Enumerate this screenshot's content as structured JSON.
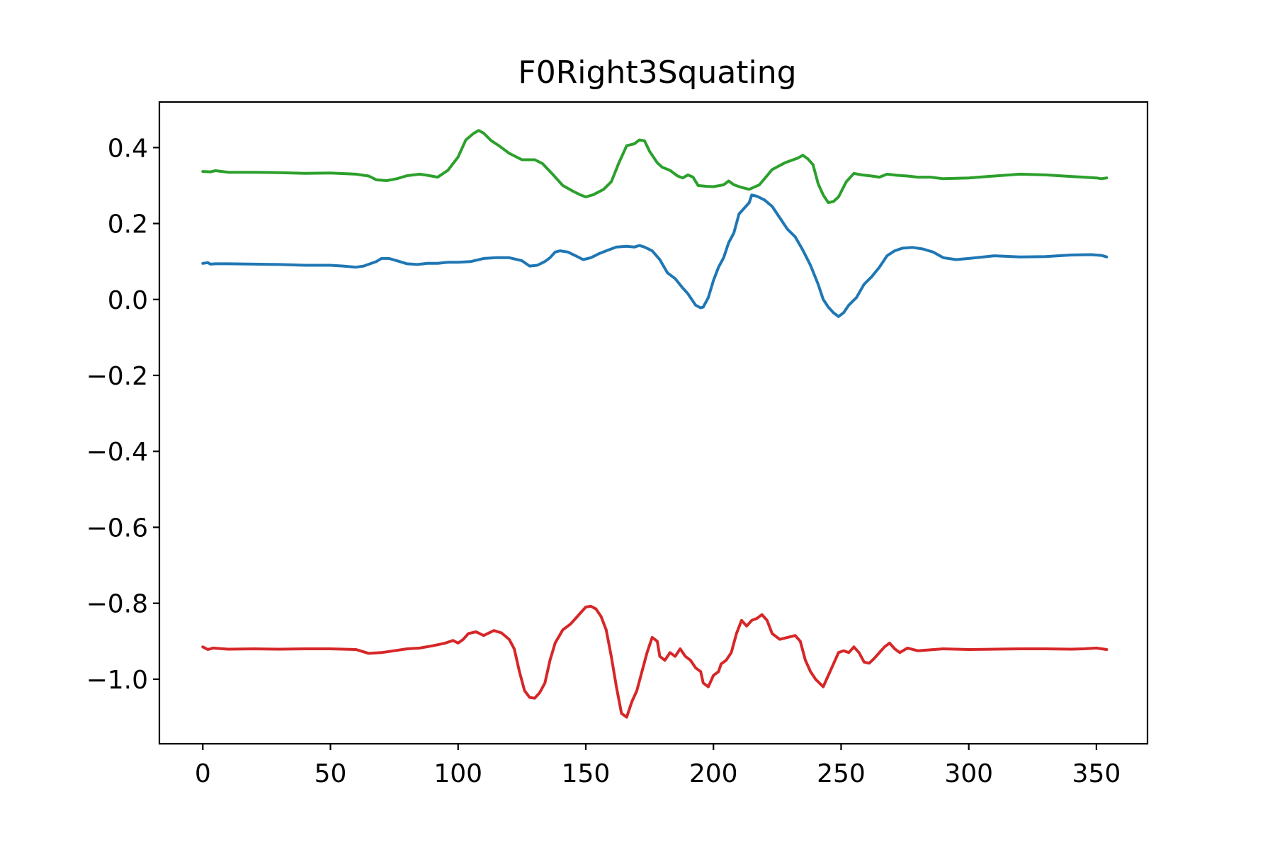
{
  "chart_data": {
    "type": "line",
    "title": "F0Right3Squating",
    "xlabel": "",
    "ylabel": "",
    "xlim": [
      -17,
      370
    ],
    "ylim": [
      -1.17,
      0.52
    ],
    "grid": false,
    "legend": "none",
    "x_ticks": [
      0,
      50,
      100,
      150,
      200,
      250,
      300,
      350
    ],
    "x_tick_labels": [
      "0",
      "50",
      "100",
      "150",
      "200",
      "250",
      "300",
      "350"
    ],
    "y_ticks": [
      0.4,
      0.2,
      0.0,
      -0.2,
      -0.4,
      -0.6,
      -0.8,
      -1.0
    ],
    "y_tick_labels": [
      "0.4",
      "0.2",
      "0.0",
      "−0.2",
      "−0.4",
      "−0.6",
      "−0.8",
      "−1.0"
    ],
    "series": [
      {
        "color": "#2ca02c",
        "points": [
          [
            0,
            0.337
          ],
          [
            3,
            0.336
          ],
          [
            5,
            0.339
          ],
          [
            10,
            0.335
          ],
          [
            20,
            0.335
          ],
          [
            30,
            0.334
          ],
          [
            40,
            0.332
          ],
          [
            50,
            0.333
          ],
          [
            60,
            0.33
          ],
          [
            65,
            0.325
          ],
          [
            68,
            0.315
          ],
          [
            72,
            0.313
          ],
          [
            76,
            0.318
          ],
          [
            80,
            0.326
          ],
          [
            85,
            0.33
          ],
          [
            88,
            0.327
          ],
          [
            92,
            0.322
          ],
          [
            96,
            0.34
          ],
          [
            100,
            0.375
          ],
          [
            103,
            0.42
          ],
          [
            106,
            0.437
          ],
          [
            108,
            0.445
          ],
          [
            110,
            0.438
          ],
          [
            113,
            0.418
          ],
          [
            116,
            0.405
          ],
          [
            120,
            0.385
          ],
          [
            125,
            0.368
          ],
          [
            130,
            0.368
          ],
          [
            133,
            0.358
          ],
          [
            137,
            0.33
          ],
          [
            141,
            0.3
          ],
          [
            145,
            0.285
          ],
          [
            148,
            0.275
          ],
          [
            150,
            0.27
          ],
          [
            153,
            0.276
          ],
          [
            157,
            0.29
          ],
          [
            160,
            0.31
          ],
          [
            163,
            0.36
          ],
          [
            166,
            0.405
          ],
          [
            169,
            0.41
          ],
          [
            171,
            0.42
          ],
          [
            173,
            0.418
          ],
          [
            175,
            0.39
          ],
          [
            178,
            0.36
          ],
          [
            180,
            0.348
          ],
          [
            183,
            0.34
          ],
          [
            186,
            0.325
          ],
          [
            188,
            0.32
          ],
          [
            190,
            0.328
          ],
          [
            192,
            0.322
          ],
          [
            194,
            0.3
          ],
          [
            197,
            0.298
          ],
          [
            200,
            0.297
          ],
          [
            204,
            0.302
          ],
          [
            206,
            0.312
          ],
          [
            208,
            0.302
          ],
          [
            211,
            0.295
          ],
          [
            214,
            0.29
          ],
          [
            216,
            0.296
          ],
          [
            218,
            0.302
          ],
          [
            220,
            0.318
          ],
          [
            223,
            0.342
          ],
          [
            228,
            0.36
          ],
          [
            233,
            0.372
          ],
          [
            235,
            0.38
          ],
          [
            237,
            0.37
          ],
          [
            239,
            0.355
          ],
          [
            241,
            0.305
          ],
          [
            243,
            0.275
          ],
          [
            245,
            0.255
          ],
          [
            247,
            0.258
          ],
          [
            249,
            0.27
          ],
          [
            252,
            0.31
          ],
          [
            255,
            0.332
          ],
          [
            258,
            0.328
          ],
          [
            262,
            0.325
          ],
          [
            265,
            0.322
          ],
          [
            268,
            0.33
          ],
          [
            272,
            0.327
          ],
          [
            276,
            0.325
          ],
          [
            280,
            0.322
          ],
          [
            285,
            0.322
          ],
          [
            290,
            0.318
          ],
          [
            300,
            0.32
          ],
          [
            310,
            0.325
          ],
          [
            320,
            0.33
          ],
          [
            330,
            0.328
          ],
          [
            340,
            0.324
          ],
          [
            345,
            0.322
          ],
          [
            350,
            0.32
          ],
          [
            352,
            0.318
          ],
          [
            354,
            0.32
          ]
        ]
      },
      {
        "color": "#1f77b4",
        "points": [
          [
            0,
            0.095
          ],
          [
            2,
            0.097
          ],
          [
            3,
            0.093
          ],
          [
            5,
            0.094
          ],
          [
            10,
            0.094
          ],
          [
            20,
            0.093
          ],
          [
            30,
            0.092
          ],
          [
            40,
            0.09
          ],
          [
            50,
            0.09
          ],
          [
            55,
            0.088
          ],
          [
            60,
            0.085
          ],
          [
            63,
            0.088
          ],
          [
            66,
            0.095
          ],
          [
            68,
            0.1
          ],
          [
            70,
            0.108
          ],
          [
            73,
            0.108
          ],
          [
            76,
            0.102
          ],
          [
            80,
            0.094
          ],
          [
            84,
            0.092
          ],
          [
            88,
            0.095
          ],
          [
            92,
            0.095
          ],
          [
            96,
            0.098
          ],
          [
            100,
            0.098
          ],
          [
            105,
            0.1
          ],
          [
            110,
            0.108
          ],
          [
            115,
            0.11
          ],
          [
            120,
            0.11
          ],
          [
            125,
            0.102
          ],
          [
            128,
            0.088
          ],
          [
            131,
            0.09
          ],
          [
            134,
            0.1
          ],
          [
            136,
            0.11
          ],
          [
            138,
            0.125
          ],
          [
            140,
            0.128
          ],
          [
            143,
            0.125
          ],
          [
            146,
            0.115
          ],
          [
            149,
            0.105
          ],
          [
            152,
            0.11
          ],
          [
            155,
            0.12
          ],
          [
            158,
            0.128
          ],
          [
            162,
            0.138
          ],
          [
            166,
            0.14
          ],
          [
            169,
            0.138
          ],
          [
            171,
            0.142
          ],
          [
            173,
            0.138
          ],
          [
            176,
            0.128
          ],
          [
            179,
            0.105
          ],
          [
            182,
            0.07
          ],
          [
            185,
            0.055
          ],
          [
            188,
            0.03
          ],
          [
            190,
            0.015
          ],
          [
            193,
            -0.015
          ],
          [
            195,
            -0.022
          ],
          [
            196,
            -0.02
          ],
          [
            198,
            0.005
          ],
          [
            200,
            0.05
          ],
          [
            202,
            0.085
          ],
          [
            204,
            0.11
          ],
          [
            206,
            0.15
          ],
          [
            208,
            0.175
          ],
          [
            210,
            0.225
          ],
          [
            212,
            0.24
          ],
          [
            214,
            0.255
          ],
          [
            215,
            0.275
          ],
          [
            217,
            0.272
          ],
          [
            220,
            0.262
          ],
          [
            223,
            0.245
          ],
          [
            226,
            0.215
          ],
          [
            229,
            0.185
          ],
          [
            232,
            0.165
          ],
          [
            235,
            0.13
          ],
          [
            238,
            0.09
          ],
          [
            241,
            0.04
          ],
          [
            243,
            0.0
          ],
          [
            245,
            -0.02
          ],
          [
            247,
            -0.035
          ],
          [
            249,
            -0.045
          ],
          [
            251,
            -0.035
          ],
          [
            253,
            -0.015
          ],
          [
            256,
            0.005
          ],
          [
            259,
            0.04
          ],
          [
            262,
            0.06
          ],
          [
            265,
            0.085
          ],
          [
            268,
            0.115
          ],
          [
            271,
            0.128
          ],
          [
            274,
            0.135
          ],
          [
            278,
            0.137
          ],
          [
            282,
            0.133
          ],
          [
            286,
            0.125
          ],
          [
            290,
            0.11
          ],
          [
            295,
            0.105
          ],
          [
            300,
            0.108
          ],
          [
            310,
            0.115
          ],
          [
            320,
            0.112
          ],
          [
            330,
            0.113
          ],
          [
            340,
            0.117
          ],
          [
            348,
            0.118
          ],
          [
            352,
            0.116
          ],
          [
            354,
            0.112
          ]
        ]
      },
      {
        "color": "#d62728",
        "points": [
          [
            0,
            -0.915
          ],
          [
            2,
            -0.922
          ],
          [
            4,
            -0.918
          ],
          [
            10,
            -0.921
          ],
          [
            20,
            -0.92
          ],
          [
            30,
            -0.921
          ],
          [
            40,
            -0.92
          ],
          [
            50,
            -0.92
          ],
          [
            60,
            -0.922
          ],
          [
            65,
            -0.932
          ],
          [
            70,
            -0.93
          ],
          [
            75,
            -0.925
          ],
          [
            80,
            -0.92
          ],
          [
            85,
            -0.918
          ],
          [
            90,
            -0.912
          ],
          [
            95,
            -0.905
          ],
          [
            98,
            -0.898
          ],
          [
            100,
            -0.905
          ],
          [
            102,
            -0.895
          ],
          [
            104,
            -0.88
          ],
          [
            107,
            -0.875
          ],
          [
            110,
            -0.885
          ],
          [
            114,
            -0.872
          ],
          [
            117,
            -0.878
          ],
          [
            120,
            -0.895
          ],
          [
            122,
            -0.92
          ],
          [
            124,
            -0.98
          ],
          [
            126,
            -1.03
          ],
          [
            128,
            -1.048
          ],
          [
            130,
            -1.05
          ],
          [
            132,
            -1.035
          ],
          [
            134,
            -1.01
          ],
          [
            136,
            -0.95
          ],
          [
            138,
            -0.905
          ],
          [
            141,
            -0.87
          ],
          [
            144,
            -0.855
          ],
          [
            146,
            -0.84
          ],
          [
            148,
            -0.825
          ],
          [
            150,
            -0.81
          ],
          [
            152,
            -0.808
          ],
          [
            154,
            -0.815
          ],
          [
            156,
            -0.835
          ],
          [
            158,
            -0.87
          ],
          [
            160,
            -0.94
          ],
          [
            162,
            -1.02
          ],
          [
            164,
            -1.09
          ],
          [
            166,
            -1.1
          ],
          [
            168,
            -1.06
          ],
          [
            170,
            -1.03
          ],
          [
            172,
            -0.98
          ],
          [
            174,
            -0.93
          ],
          [
            176,
            -0.89
          ],
          [
            178,
            -0.9
          ],
          [
            179,
            -0.94
          ],
          [
            181,
            -0.95
          ],
          [
            183,
            -0.93
          ],
          [
            185,
            -0.94
          ],
          [
            187,
            -0.92
          ],
          [
            189,
            -0.94
          ],
          [
            191,
            -0.95
          ],
          [
            193,
            -0.97
          ],
          [
            195,
            -0.98
          ],
          [
            196,
            -1.01
          ],
          [
            198,
            -1.02
          ],
          [
            200,
            -0.99
          ],
          [
            202,
            -0.98
          ],
          [
            203,
            -0.96
          ],
          [
            205,
            -0.95
          ],
          [
            207,
            -0.93
          ],
          [
            209,
            -0.88
          ],
          [
            211,
            -0.845
          ],
          [
            213,
            -0.86
          ],
          [
            215,
            -0.845
          ],
          [
            217,
            -0.84
          ],
          [
            219,
            -0.83
          ],
          [
            221,
            -0.845
          ],
          [
            223,
            -0.88
          ],
          [
            226,
            -0.895
          ],
          [
            229,
            -0.89
          ],
          [
            232,
            -0.885
          ],
          [
            234,
            -0.9
          ],
          [
            236,
            -0.95
          ],
          [
            238,
            -0.98
          ],
          [
            240,
            -1.0
          ],
          [
            243,
            -1.02
          ],
          [
            245,
            -0.99
          ],
          [
            247,
            -0.96
          ],
          [
            249,
            -0.93
          ],
          [
            251,
            -0.925
          ],
          [
            253,
            -0.93
          ],
          [
            255,
            -0.915
          ],
          [
            257,
            -0.93
          ],
          [
            259,
            -0.955
          ],
          [
            261,
            -0.958
          ],
          [
            263,
            -0.945
          ],
          [
            265,
            -0.93
          ],
          [
            267,
            -0.915
          ],
          [
            269,
            -0.905
          ],
          [
            271,
            -0.92
          ],
          [
            273,
            -0.93
          ],
          [
            276,
            -0.918
          ],
          [
            280,
            -0.925
          ],
          [
            290,
            -0.92
          ],
          [
            300,
            -0.922
          ],
          [
            310,
            -0.921
          ],
          [
            320,
            -0.92
          ],
          [
            330,
            -0.92
          ],
          [
            340,
            -0.921
          ],
          [
            345,
            -0.92
          ],
          [
            350,
            -0.918
          ],
          [
            354,
            -0.922
          ]
        ]
      }
    ]
  }
}
